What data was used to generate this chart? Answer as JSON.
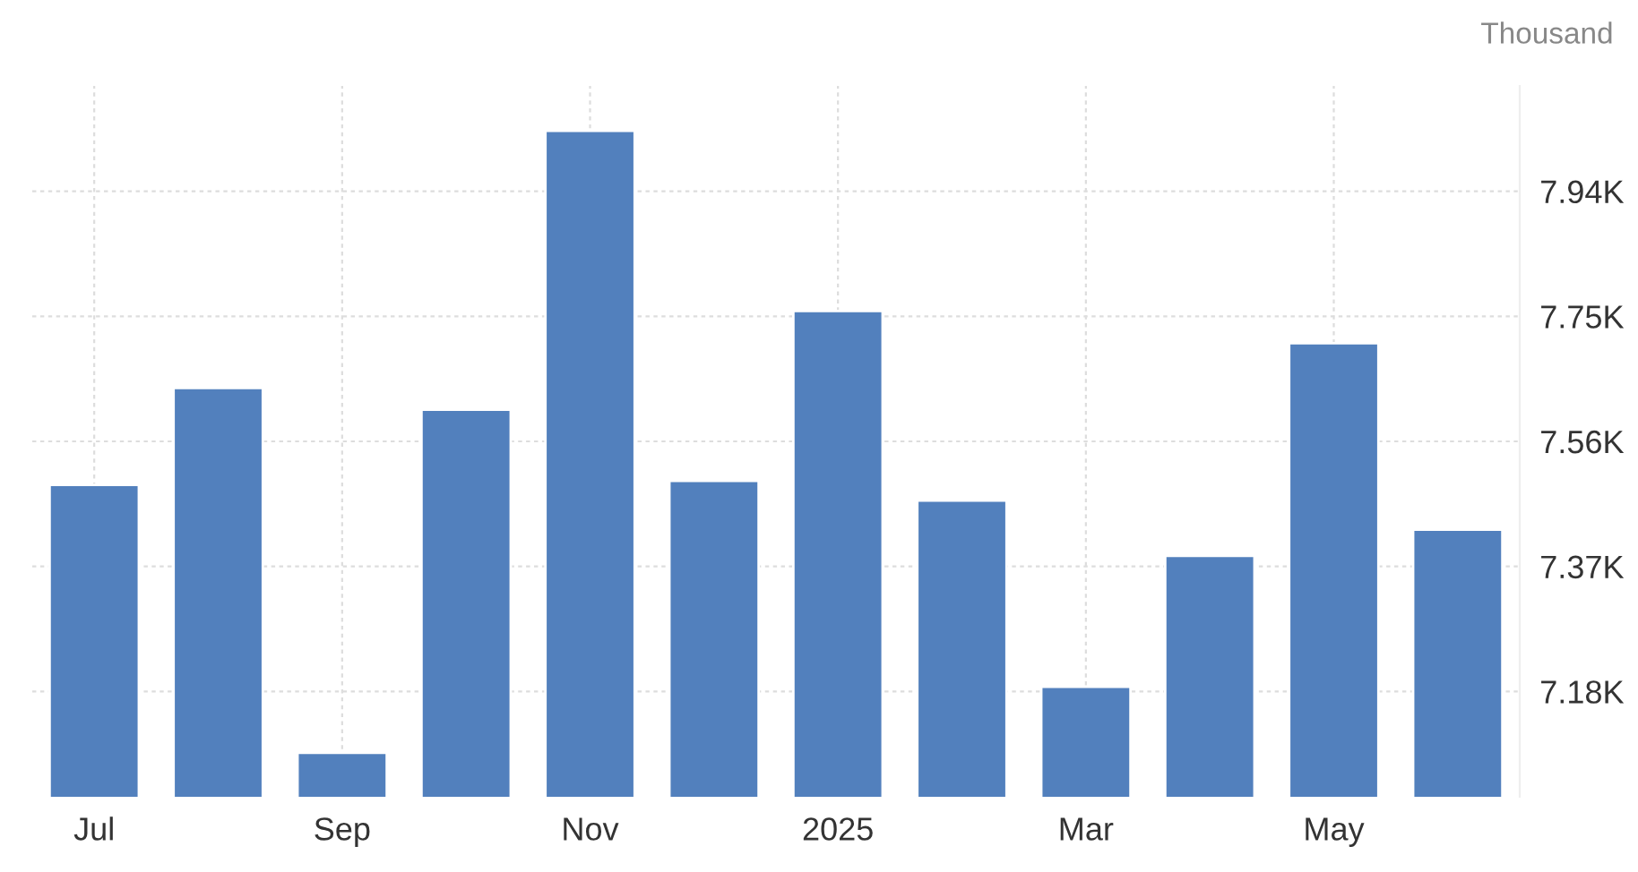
{
  "chart_data": {
    "type": "bar",
    "ylabel": "Thousand",
    "categories": [
      "Jul",
      null,
      "Sep",
      null,
      "Nov",
      null,
      "2025",
      null,
      "Mar",
      null,
      "May",
      null
    ],
    "values": [
      7.494,
      7.641,
      7.087,
      7.608,
      8.032,
      7.5,
      7.758,
      7.47,
      7.187,
      7.386,
      7.709,
      7.426
    ],
    "color": "#5280bd",
    "ylim": [
      7.02,
      8.1
    ],
    "yticks": [
      {
        "value": 7.18,
        "label": "7.18K"
      },
      {
        "value": 7.37,
        "label": "7.37K"
      },
      {
        "value": 7.56,
        "label": "7.56K"
      },
      {
        "value": 7.75,
        "label": "7.75K"
      },
      {
        "value": 7.94,
        "label": "7.94K"
      }
    ],
    "grid": true
  }
}
